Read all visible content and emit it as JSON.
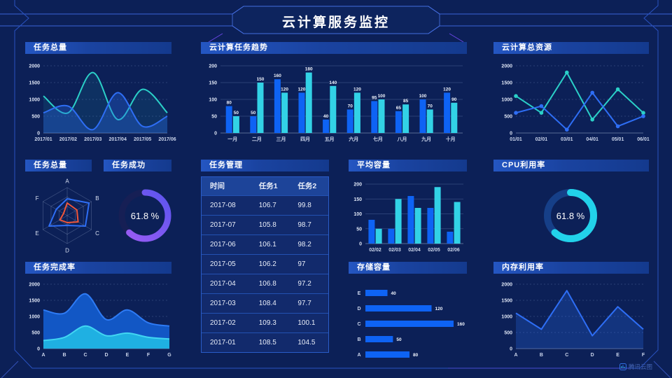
{
  "title": "云计算服务监控",
  "brand": "腾讯云图",
  "colors": {
    "bg": "#0c2057",
    "blue": "#0e63f4",
    "cyan": "#32d2e6",
    "teal": "#2bd0c8",
    "lineBlue": "#2e6ef5",
    "purple": "#7d55f2",
    "cyan2": "#22d2ea",
    "red": "#f0563a",
    "frame": "#2a52c0",
    "axisText": "#ccd6ec"
  },
  "chart_data": [
    {
      "id": "task-total-trend",
      "title": "任务总量",
      "type": "area",
      "smooth": true,
      "grid": "dashed",
      "x": [
        "2017/01",
        "2017/02",
        "2017/03",
        "2017/04",
        "2017/05",
        "2017/06"
      ],
      "series": [
        {
          "name": "series-teal",
          "color": "teal",
          "fill": "rgba(43,208,200,0.10)",
          "values": [
            1100,
            600,
            1800,
            400,
            1300,
            600
          ]
        },
        {
          "name": "series-blue",
          "color": "lineBlue",
          "fill": "rgba(40,105,230,0.35)",
          "values": [
            600,
            800,
            100,
            1200,
            200,
            500
          ]
        }
      ],
      "ylim": [
        0,
        2000
      ],
      "yticks": [
        0,
        500,
        1000,
        1500,
        2000
      ]
    },
    {
      "id": "cloud-task-trend",
      "title": "云计算任务趋势",
      "type": "bar",
      "labels": true,
      "categories": [
        "一月",
        "二月",
        "三月",
        "四月",
        "五月",
        "六月",
        "七月",
        "八月",
        "九月",
        "十月"
      ],
      "series": [
        {
          "name": "任务1",
          "color": "blue",
          "values": [
            80,
            50,
            160,
            120,
            40,
            70,
            95,
            65,
            100,
            120
          ]
        },
        {
          "name": "任务2",
          "color": "cyan",
          "values": [
            50,
            150,
            120,
            180,
            140,
            120,
            100,
            85,
            70,
            90
          ]
        }
      ],
      "ylim": [
        0,
        200
      ],
      "yticks": [
        0,
        50,
        100,
        150,
        200
      ]
    },
    {
      "id": "cloud-total-resources",
      "title": "云计算总资源",
      "type": "line",
      "markers": true,
      "grid": "dashed",
      "x": [
        "01/01",
        "02/01",
        "03/01",
        "04/01",
        "05/01",
        "06/01"
      ],
      "series": [
        {
          "name": "series-teal",
          "color": "teal",
          "values": [
            1100,
            600,
            1800,
            400,
            1300,
            600
          ]
        },
        {
          "name": "series-blue",
          "color": "lineBlue",
          "values": [
            600,
            800,
            100,
            1200,
            200,
            500
          ]
        }
      ],
      "ylim": [
        0,
        2000
      ],
      "yticks": [
        0,
        500,
        1000,
        1500,
        2000
      ]
    },
    {
      "id": "task-total-radar",
      "title": "任务总量",
      "type": "radar",
      "max": 100,
      "axes": [
        "A",
        "B",
        "C",
        "D",
        "E",
        "F"
      ],
      "series": [
        {
          "name": "series-blue",
          "color": "lineBlue",
          "values": [
            60,
            90,
            75,
            35,
            75,
            45
          ]
        },
        {
          "name": "series-red",
          "color": "red",
          "values": [
            45,
            40,
            45,
            25,
            30,
            15
          ]
        }
      ]
    },
    {
      "id": "task-success",
      "title": "任务成功",
      "type": "donut",
      "value": 61.8,
      "label": "61.8 %",
      "color": "purple",
      "gradient": [
        "#9d5cf5",
        "#5b55ee"
      ],
      "track": "#161f55"
    },
    {
      "id": "task-management",
      "title": "任务管理",
      "type": "table",
      "columns": [
        "时间",
        "任务1",
        "任务2"
      ],
      "rows": [
        [
          "2017-08",
          "106.7",
          "99.8"
        ],
        [
          "2017-07",
          "105.8",
          "98.7"
        ],
        [
          "2017-06",
          "106.1",
          "98.2"
        ],
        [
          "2017-05",
          "106.2",
          "97"
        ],
        [
          "2017-04",
          "106.8",
          "97.2"
        ],
        [
          "2017-03",
          "108.4",
          "97.7"
        ],
        [
          "2017-02",
          "109.3",
          "100.1"
        ],
        [
          "2017-01",
          "108.5",
          "104.5"
        ]
      ]
    },
    {
      "id": "avg-capacity",
      "title": "平均容量",
      "type": "bar",
      "labels": false,
      "categories": [
        "02/02",
        "02/03",
        "02/04",
        "02/05",
        "02/06"
      ],
      "series": [
        {
          "name": "series-blue",
          "color": "blue",
          "values": [
            80,
            50,
            160,
            120,
            40
          ]
        },
        {
          "name": "series-cyan",
          "color": "cyan",
          "values": [
            50,
            150,
            120,
            190,
            140
          ]
        }
      ],
      "ylim": [
        0,
        200
      ],
      "yticks": [
        0,
        50,
        100,
        150,
        200
      ]
    },
    {
      "id": "cpu-utilization",
      "title": "CPU利用率",
      "type": "donut",
      "value": 61.8,
      "label": "61.8 %",
      "color": "cyan2",
      "track": "#163f88"
    },
    {
      "id": "task-completion",
      "title": "任务完成率",
      "type": "stacked-area",
      "smooth": true,
      "grid": "dashed",
      "x": [
        "A",
        "B",
        "C",
        "D",
        "E",
        "F",
        "G"
      ],
      "series": [
        {
          "name": "series-blue",
          "color": "#2e7bf5",
          "fill": "#1257c5",
          "values": [
            1200,
            1100,
            1700,
            900,
            1200,
            800,
            700
          ]
        },
        {
          "name": "series-cyan",
          "color": "#41d6f2",
          "fill": "#1fb0e2",
          "values": [
            250,
            350,
            700,
            400,
            480,
            350,
            300
          ]
        }
      ],
      "ylim": [
        0,
        2000
      ],
      "yticks": [
        0,
        500,
        1000,
        1500,
        2000
      ]
    },
    {
      "id": "storage-capacity",
      "title": "存储容量",
      "type": "hbar",
      "xmax": 160,
      "categories": [
        "E",
        "D",
        "C",
        "B",
        "A"
      ],
      "values": [
        40,
        120,
        160,
        50,
        80
      ]
    },
    {
      "id": "memory-utilization",
      "title": "内存利用率",
      "type": "line-area",
      "grid": "dashed",
      "x": [
        "A",
        "B",
        "C",
        "D",
        "E",
        "F"
      ],
      "series": [
        {
          "name": "series-blue",
          "color": "lineBlue",
          "fill": "rgba(40,105,230,0.28)",
          "values": [
            1100,
            600,
            1800,
            400,
            1300,
            600
          ]
        }
      ],
      "ylim": [
        0,
        2000
      ],
      "yticks": [
        0,
        500,
        1000,
        1500,
        2000
      ]
    }
  ]
}
